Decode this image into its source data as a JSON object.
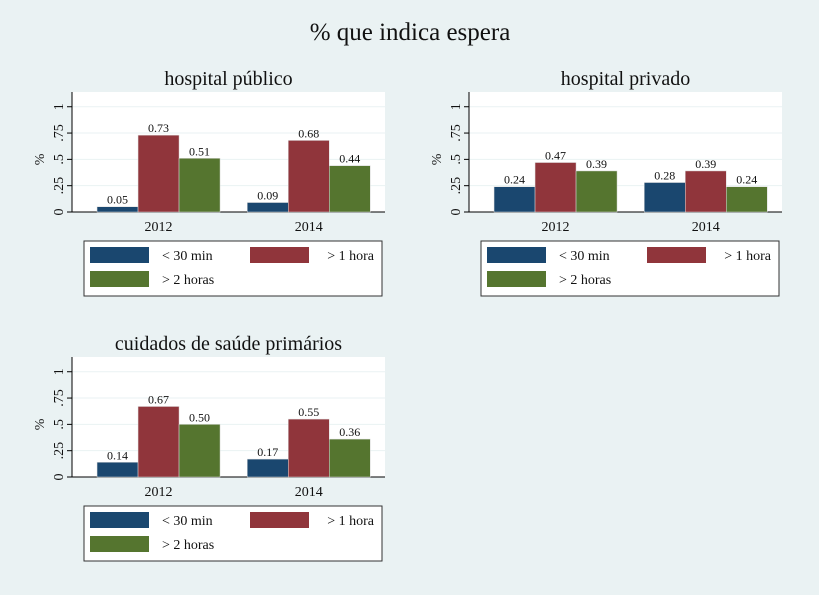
{
  "title": "% que indica espera",
  "colors": {
    "background": "#eaf2f3",
    "lt30": "#1a476f",
    "gt1": "#90353b",
    "gt2": "#55752f"
  },
  "legend_labels": [
    "< 30 min",
    "> 1 hora",
    "> 2 horas"
  ],
  "chart_data": [
    {
      "type": "bar",
      "title": "hospital público",
      "ylabel": "%",
      "ylim": [
        0,
        1.14
      ],
      "yticks": [
        "0",
        ".25",
        ".5",
        ".75",
        "1"
      ],
      "categories": [
        "2012",
        "2014"
      ],
      "grid": true,
      "legend": "bottom",
      "series": [
        {
          "name": "< 30 min",
          "values": [
            0.05,
            0.09
          ],
          "labels": [
            "0.05",
            "0.09"
          ]
        },
        {
          "name": "> 1 hora",
          "values": [
            0.73,
            0.68
          ],
          "labels": [
            "0.73",
            "0.68"
          ]
        },
        {
          "name": "> 2 horas",
          "values": [
            0.51,
            0.44
          ],
          "labels": [
            "0.51",
            "0.44"
          ]
        }
      ]
    },
    {
      "type": "bar",
      "title": "hospital privado",
      "ylabel": "%",
      "ylim": [
        0,
        1.14
      ],
      "yticks": [
        "0",
        ".25",
        ".5",
        ".75",
        "1"
      ],
      "categories": [
        "2012",
        "2014"
      ],
      "grid": true,
      "legend": "bottom",
      "series": [
        {
          "name": "< 30 min",
          "values": [
            0.24,
            0.28
          ],
          "labels": [
            "0.24",
            "0.28"
          ]
        },
        {
          "name": "> 1 hora",
          "values": [
            0.47,
            0.39
          ],
          "labels": [
            "0.47",
            "0.39"
          ]
        },
        {
          "name": "> 2 horas",
          "values": [
            0.39,
            0.24
          ],
          "labels": [
            "0.39",
            "0.24"
          ]
        }
      ]
    },
    {
      "type": "bar",
      "title": "cuidados de saúde primários",
      "ylabel": "%",
      "ylim": [
        0,
        1.14
      ],
      "yticks": [
        "0",
        ".25",
        ".5",
        ".75",
        "1"
      ],
      "categories": [
        "2012",
        "2014"
      ],
      "grid": true,
      "legend": "bottom",
      "series": [
        {
          "name": "< 30 min",
          "values": [
            0.14,
            0.17
          ],
          "labels": [
            "0.14",
            "0.17"
          ]
        },
        {
          "name": "> 1 hora",
          "values": [
            0.67,
            0.55
          ],
          "labels": [
            "0.67",
            "0.55"
          ]
        },
        {
          "name": "> 2 horas",
          "values": [
            0.5,
            0.36
          ],
          "labels": [
            "0.50",
            "0.36"
          ]
        }
      ]
    }
  ]
}
